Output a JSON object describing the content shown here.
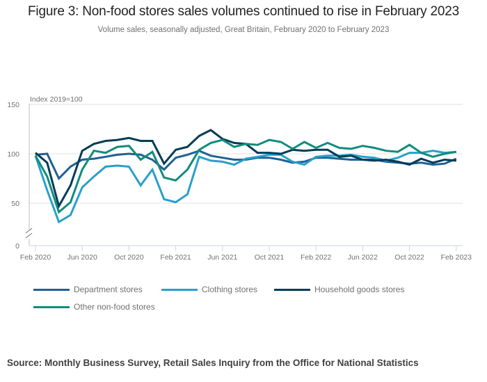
{
  "header": {
    "title": "Figure 3: Non-food stores sales volumes continued to rise in February 2023",
    "subtitle": "Volume sales, seasonally adjusted, Great Britain, February 2020 to February 2023"
  },
  "chart_data": {
    "type": "line",
    "title": "Figure 3: Non-food stores sales volumes continued to rise in February 2023",
    "subtitle": "Volume sales, seasonally adjusted, Great Britain, February 2020 to February 2023",
    "ylabel": "Index 2019=100",
    "xlabel": "",
    "ylim": [
      0,
      150
    ],
    "y_axis_break": true,
    "yticks": [
      0,
      50,
      100,
      150
    ],
    "grid": true,
    "legend_position": "bottom",
    "x_tick_labels": [
      "Feb 2020",
      "Jun 2020",
      "Oct 2020",
      "Feb 2021",
      "Jun 2021",
      "Oct 2021",
      "Feb 2022",
      "Jun 2022",
      "Oct 2022",
      "Feb 2023"
    ],
    "x_tick_every_n_months": 4,
    "x": [
      "Feb 2020",
      "Mar 2020",
      "Apr 2020",
      "May 2020",
      "Jun 2020",
      "Jul 2020",
      "Aug 2020",
      "Sep 2020",
      "Oct 2020",
      "Nov 2020",
      "Dec 2020",
      "Jan 2021",
      "Feb 2021",
      "Mar 2021",
      "Apr 2021",
      "May 2021",
      "Jun 2021",
      "Jul 2021",
      "Aug 2021",
      "Sep 2021",
      "Oct 2021",
      "Nov 2021",
      "Dec 2021",
      "Jan 2022",
      "Feb 2022",
      "Mar 2022",
      "Apr 2022",
      "May 2022",
      "Jun 2022",
      "Jul 2022",
      "Aug 2022",
      "Sep 2022",
      "Oct 2022",
      "Nov 2022",
      "Dec 2022",
      "Jan 2023",
      "Feb 2023"
    ],
    "series": [
      {
        "name": "Department stores",
        "color": "#206095",
        "values": [
          99,
          100,
          75,
          87,
          94,
          95,
          97,
          99,
          100,
          99,
          94,
          84,
          96,
          99,
          103,
          98,
          96,
          94,
          94,
          96,
          96,
          94,
          91,
          92,
          96,
          96,
          95,
          94,
          94,
          94,
          92,
          91,
          90,
          91,
          89,
          90,
          95
        ]
      },
      {
        "name": "Clothing stores",
        "color": "#27a0cc",
        "values": [
          98,
          63,
          31,
          38,
          66,
          77,
          87,
          88,
          87,
          68,
          84,
          54,
          51,
          59,
          97,
          93,
          92,
          89,
          95,
          97,
          99,
          99,
          92,
          89,
          97,
          98,
          98,
          99,
          97,
          96,
          93,
          96,
          101,
          101,
          103,
          101,
          102
        ]
      },
      {
        "name": "Household goods stores",
        "color": "#003c57",
        "values": [
          101,
          91,
          47,
          68,
          103,
          110,
          113,
          114,
          116,
          113,
          113,
          90,
          104,
          107,
          118,
          124,
          115,
          111,
          110,
          101,
          101,
          100,
          104,
          103,
          104,
          104,
          97,
          98,
          94,
          93,
          94,
          92,
          89,
          95,
          91,
          94,
          93
        ]
      },
      {
        "name": "Other non-food stores",
        "color": "#118c7b",
        "values": [
          98,
          77,
          41,
          51,
          84,
          103,
          101,
          107,
          108,
          94,
          102,
          76,
          73,
          84,
          104,
          111,
          114,
          107,
          110,
          109,
          114,
          112,
          105,
          112,
          106,
          111,
          106,
          105,
          108,
          106,
          103,
          102,
          109,
          101,
          97,
          100,
          102
        ]
      }
    ]
  },
  "legend": {
    "items": [
      "Department stores",
      "Clothing stores",
      "Household goods stores",
      "Other non-food stores"
    ]
  },
  "footer": {
    "source": "Source: Monthly Business Survey, Retail Sales Inquiry from the Office for National Statistics"
  }
}
